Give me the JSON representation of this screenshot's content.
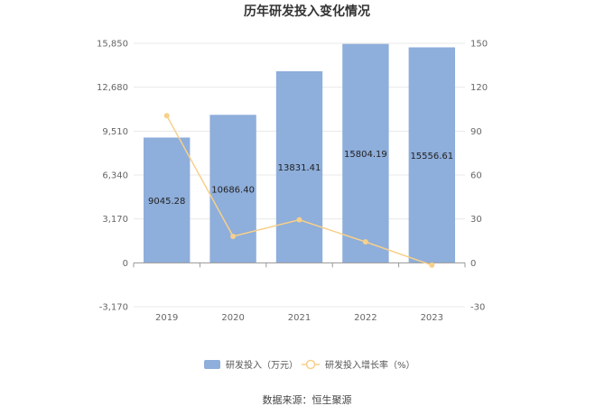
{
  "chart_data": {
    "type": "bar",
    "title": "历年研发投入变化情况",
    "categories": [
      "2019",
      "2020",
      "2021",
      "2022",
      "2023"
    ],
    "series": [
      {
        "name": "研发投入（万元）",
        "type": "bar",
        "axis": "left",
        "values": [
          9045.28,
          10686.4,
          13831.41,
          15804.19,
          15556.61
        ],
        "labels": [
          "9045.28",
          "10686.40",
          "13831.41",
          "15804.19",
          "15556.61"
        ]
      },
      {
        "name": "研发投入增长率（%）",
        "type": "line",
        "axis": "right",
        "values": [
          100.5,
          18.1,
          29.4,
          14.3,
          -1.6
        ]
      }
    ],
    "y_left": {
      "ylim": [
        -3170,
        15850
      ],
      "ticks": [
        -3170,
        0,
        3170,
        6340,
        9510,
        12680,
        15850
      ],
      "tick_labels": [
        "-3,170",
        "0",
        "3,170",
        "6,340",
        "9,510",
        "12,680",
        "15,850"
      ]
    },
    "y_right": {
      "ylim": [
        -30,
        150
      ],
      "ticks": [
        -30,
        0,
        30,
        60,
        90,
        120,
        150
      ],
      "tick_labels": [
        "-30",
        "0",
        "30",
        "60",
        "90",
        "120",
        "150"
      ]
    },
    "grid": true,
    "legend": "bottom",
    "colors": {
      "bar": "#8eaedb",
      "line": "#f7d08a",
      "grid": "#e8e8e8",
      "axis": "#999999"
    }
  },
  "source_text": "数据来源：恒生聚源"
}
